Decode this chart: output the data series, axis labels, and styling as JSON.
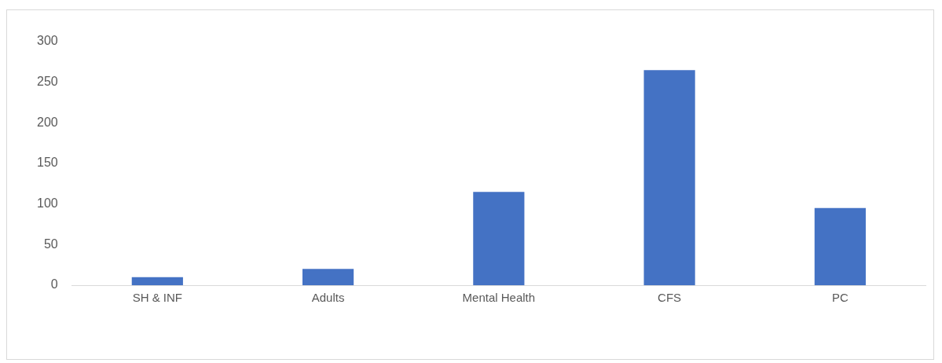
{
  "chart_data": {
    "type": "bar",
    "categories": [
      "SH & INF",
      "Adults",
      "Mental Health",
      "CFS",
      "PC"
    ],
    "values": [
      10,
      20,
      115,
      265,
      95
    ],
    "color": "#4472c4",
    "ylim": [
      0,
      300
    ],
    "yticks": [
      0,
      50,
      100,
      150,
      200,
      250,
      300
    ],
    "grid": false,
    "legend": false
  }
}
